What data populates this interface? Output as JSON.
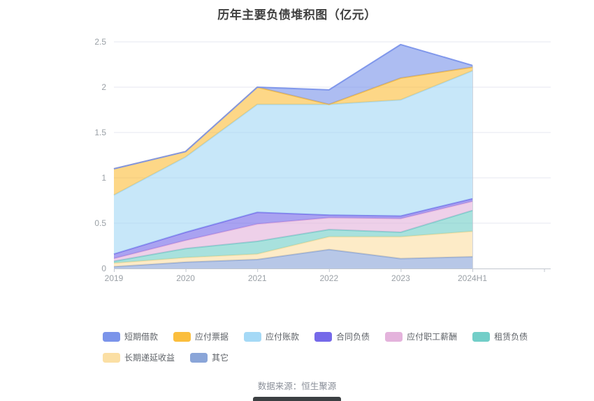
{
  "chart_data": {
    "type": "area",
    "stacked": true,
    "title": "历年主要负债堆积图（亿元）",
    "categories": [
      "2019",
      "2020",
      "2021",
      "2022",
      "2023",
      "2024H1"
    ],
    "series": [
      {
        "name": "短期借款",
        "color": "#7B94EA",
        "values": [
          0.0,
          0.0,
          0.0,
          0.16,
          0.37,
          0.02
        ]
      },
      {
        "name": "应付票据",
        "color": "#FBBE3D",
        "values": [
          0.29,
          0.06,
          0.19,
          0.0,
          0.24,
          0.04
        ]
      },
      {
        "name": "应付账款",
        "color": "#A5D9F6",
        "values": [
          0.65,
          0.83,
          1.19,
          1.22,
          1.28,
          1.41
        ]
      },
      {
        "name": "合同负债",
        "color": "#7569E9",
        "values": [
          0.05,
          0.09,
          0.13,
          0.03,
          0.03,
          0.03
        ]
      },
      {
        "name": "应付职工薪酬",
        "color": "#E4B3DC",
        "values": [
          0.03,
          0.09,
          0.19,
          0.13,
          0.15,
          0.1
        ]
      },
      {
        "name": "租赁负债",
        "color": "#72CEC8",
        "values": [
          0.02,
          0.1,
          0.14,
          0.08,
          0.05,
          0.23
        ]
      },
      {
        "name": "长期递延收益",
        "color": "#FBDFA4",
        "values": [
          0.04,
          0.05,
          0.06,
          0.14,
          0.24,
          0.28
        ]
      },
      {
        "name": "其它",
        "color": "#8AA5D8",
        "values": [
          0.02,
          0.07,
          0.1,
          0.21,
          0.11,
          0.13
        ]
      }
    ],
    "stack_bottom_to_top": [
      "其它",
      "长期递延收益",
      "租赁负债",
      "应付职工薪酬",
      "合同负债",
      "应付账款",
      "应付票据",
      "短期借款"
    ],
    "ylim": [
      0,
      2.5
    ],
    "yticks": [
      0,
      0.5,
      1,
      1.5,
      2,
      2.5
    ],
    "grid": true,
    "legend_position": "bottom",
    "legend_rows": [
      [
        "短期借款",
        "应付票据",
        "应付账款",
        "合同负债",
        "应付职工薪酬",
        "租赁负债"
      ],
      [
        "长期递延收益",
        "其它"
      ]
    ]
  },
  "style_colors": {
    "grid_line": "#E4E7F1",
    "axis_line": "#C2C7CF",
    "tick_label": "#9AA0A6",
    "highlight_line": "#C3C9D4"
  },
  "footer": {
    "text": "数据来源：恒生聚源"
  }
}
